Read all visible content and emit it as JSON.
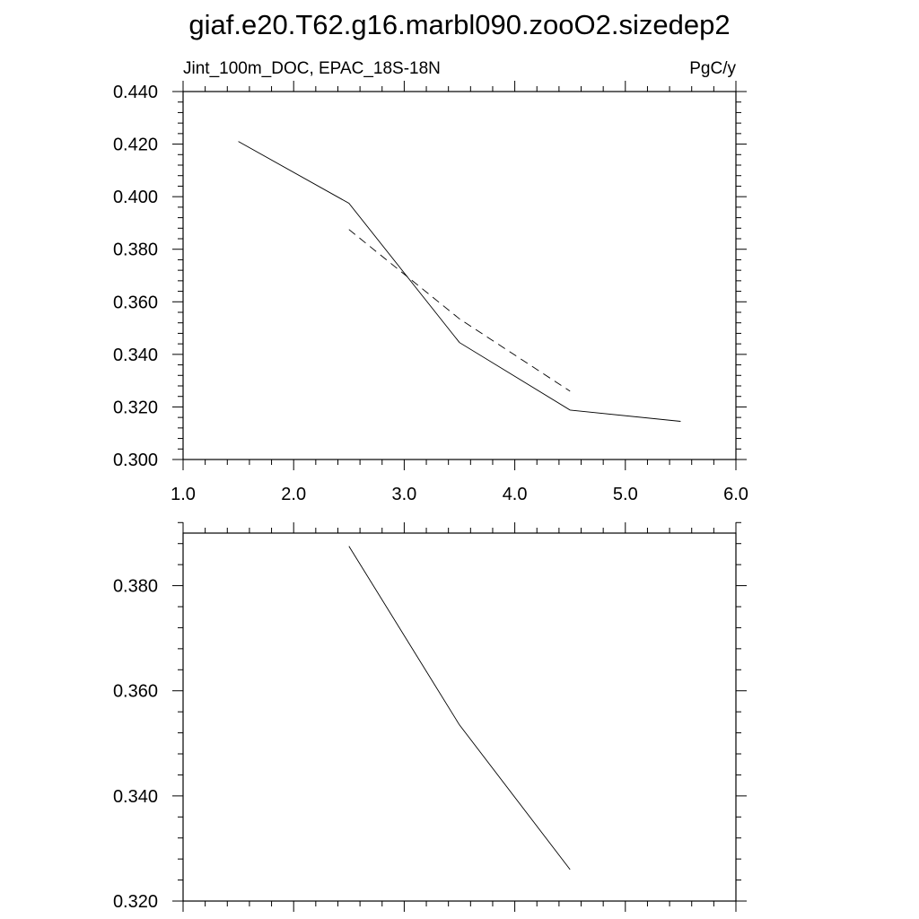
{
  "title": "giaf.e20.T62.g16.marbl090.zooO2.sizedep2",
  "chart_data": [
    {
      "type": "line",
      "subtitle_left": "Jint_100m_DOC, EPAC_18S-18N",
      "subtitle_right": "PgC/y",
      "xlim": [
        1.0,
        6.0
      ],
      "ylim": [
        0.3,
        0.44
      ],
      "x_ticks": [
        "1.0",
        "2.0",
        "3.0",
        "4.0",
        "5.0",
        "6.0"
      ],
      "y_ticks": [
        "0.300",
        "0.320",
        "0.340",
        "0.360",
        "0.380",
        "0.400",
        "0.420",
        "0.440"
      ],
      "series": [
        {
          "style": "solid",
          "x": [
            1.5,
            2.5,
            3.5,
            4.5,
            5.5
          ],
          "y": [
            0.421,
            0.3975,
            0.3445,
            0.3188,
            0.3145
          ]
        },
        {
          "style": "dashed",
          "x": [
            2.5,
            3.5,
            4.5
          ],
          "y": [
            0.3875,
            0.3535,
            0.326
          ]
        }
      ],
      "grid": false
    },
    {
      "type": "line",
      "xlim": [
        1.0,
        6.0
      ],
      "ylim": [
        0.32,
        0.39
      ],
      "x_ticks": [],
      "y_ticks": [
        "0.320",
        "0.340",
        "0.360",
        "0.380"
      ],
      "series": [
        {
          "style": "solid",
          "x": [
            2.5,
            3.5,
            4.5
          ],
          "y": [
            0.3875,
            0.3535,
            0.326
          ]
        }
      ],
      "grid": false
    }
  ]
}
